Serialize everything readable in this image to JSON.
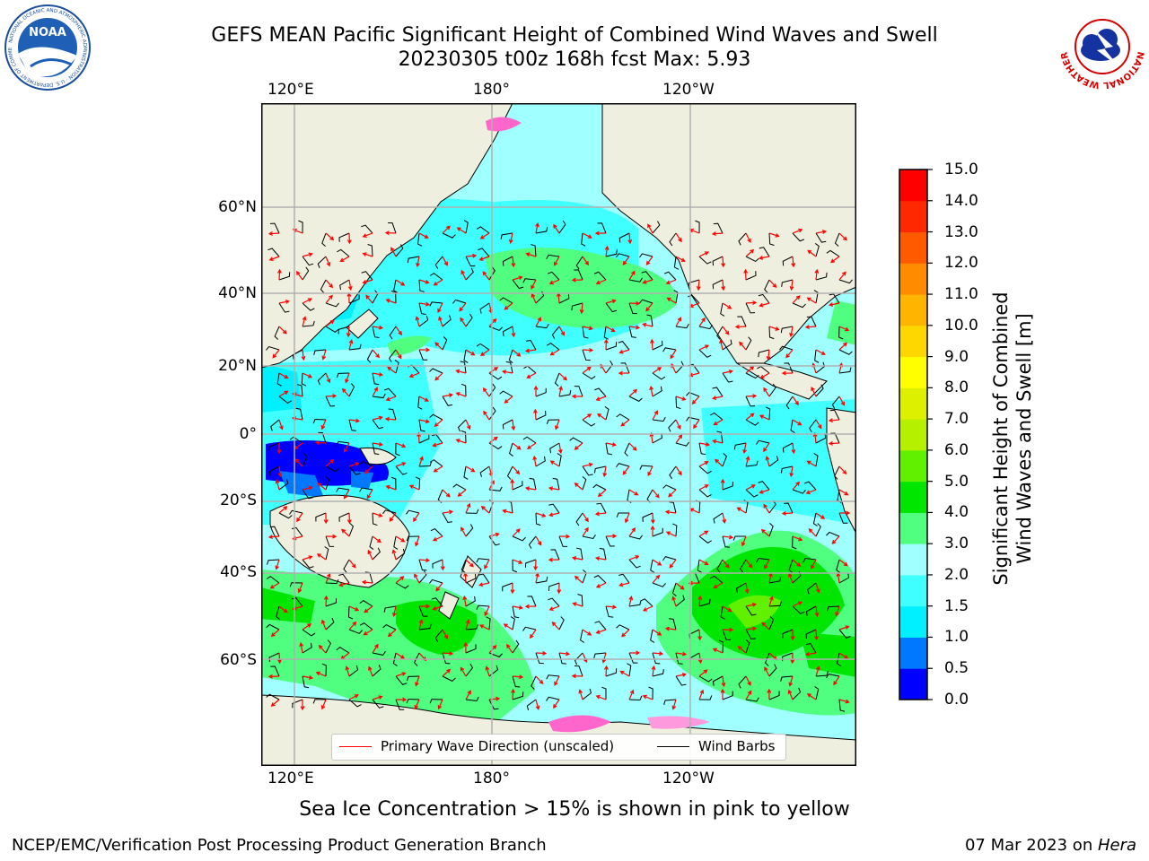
{
  "title": {
    "line1": "GEFS MEAN Pacific Significant Height of Combined Wind Waves and Swell",
    "line2": "20230305 t00z 168h fcst   Max: 5.93"
  },
  "logos": {
    "left": {
      "icon": "noaa-logo-icon",
      "text": "NOAA"
    },
    "right": {
      "icon": "nws-logo-icon",
      "text": "NATIONAL WEATHER SERVICE"
    }
  },
  "map": {
    "lon_ticks_top": [
      "120°E",
      "180°",
      "120°W"
    ],
    "lon_ticks_bottom": [
      "120°E",
      "180°",
      "120°W"
    ],
    "lat_ticks": [
      "60°N",
      "40°N",
      "20°N",
      "0°",
      "20°S",
      "40°S",
      "60°S"
    ],
    "land_color": "#efefdf",
    "grid_color": "#b0b0b0"
  },
  "legend": {
    "primary_wave_label": "Primary Wave Direction (unscaled)",
    "wind_barbs_label": "Wind Barbs",
    "primary_wave_color": "#ff0000",
    "wind_barbs_color": "#000000"
  },
  "colorbar": {
    "label_line1": "Significant Height of Combined",
    "label_line2": "Wind Waves and Swell [m]",
    "levels": [
      "0.0",
      "0.5",
      "1.0",
      "1.5",
      "2.0",
      "3.0",
      "4.0",
      "5.0",
      "6.0",
      "7.0",
      "8.0",
      "9.0",
      "10.0",
      "11.0",
      "12.0",
      "13.0",
      "14.0",
      "15.0"
    ],
    "colors": [
      "#0000ff",
      "#0078ff",
      "#00f0ff",
      "#40ffff",
      "#a0ffff",
      "#50ff80",
      "#00e600",
      "#60f000",
      "#b4f000",
      "#dcf000",
      "#ffff00",
      "#ffd700",
      "#ffb400",
      "#ff8c00",
      "#ff5a00",
      "#ff2800",
      "#ff0000"
    ]
  },
  "ice_note": "Sea Ice Concentration > 15% is shown in pink to yellow",
  "footer": {
    "left": "NCEP/EMC/Verification Post Processing Product Generation Branch",
    "right_prefix": "07 Mar 2023 on ",
    "right_machine": "Hera"
  }
}
